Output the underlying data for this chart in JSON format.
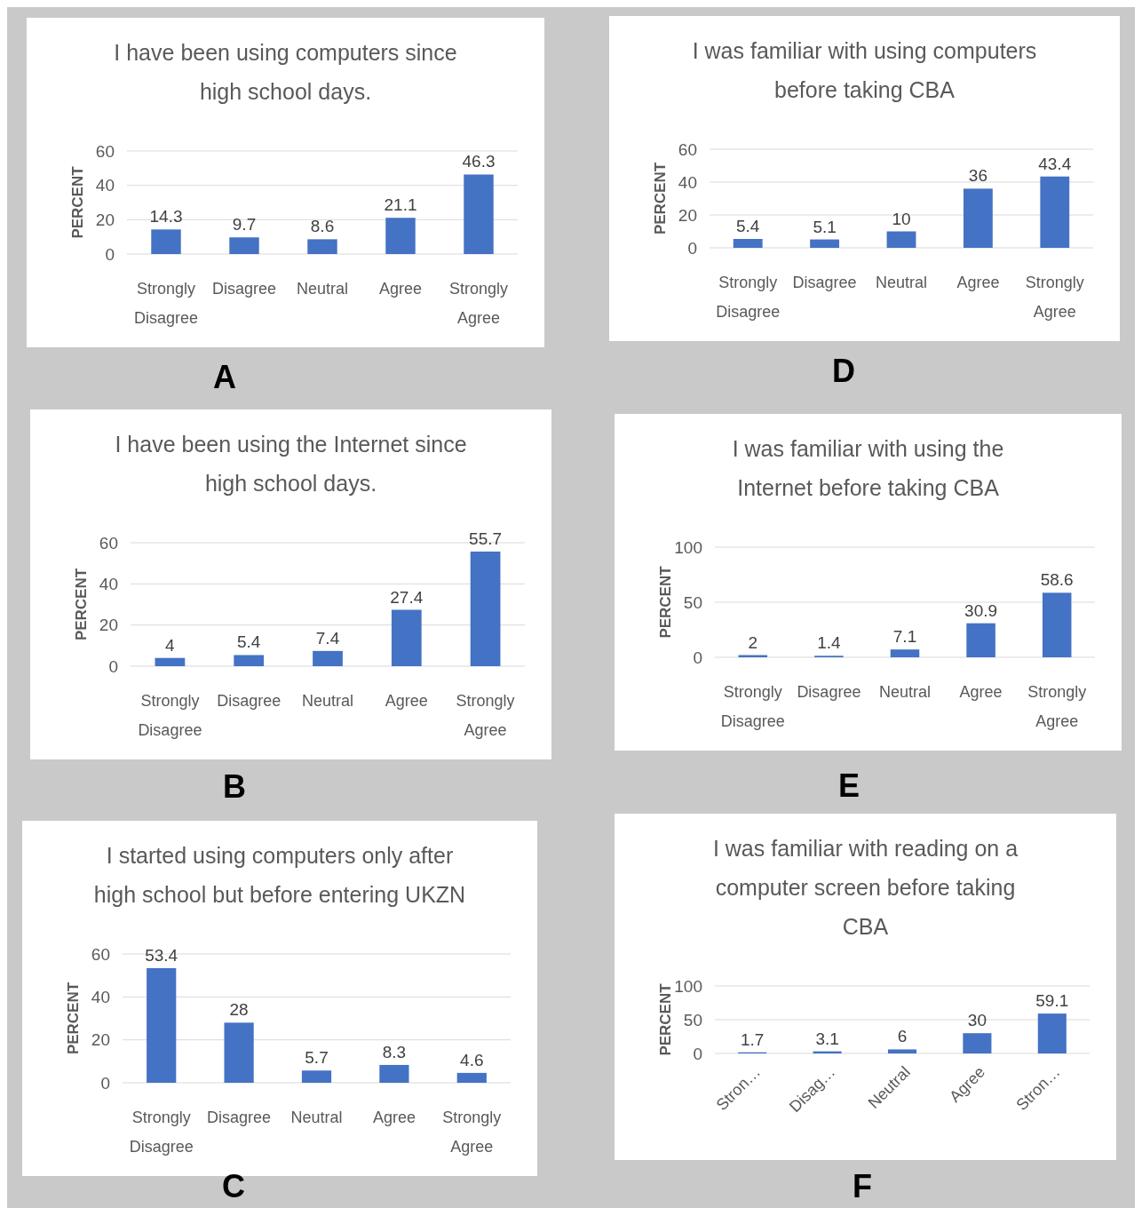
{
  "chart_data": [
    {
      "type": "bar",
      "title": "I have been using computers since high school days.",
      "ylabel": "PERCENT",
      "categories": [
        "Strongly Disagree",
        "Disagree",
        "Neutral",
        "Agree",
        "Strongly Agree"
      ],
      "values": [
        14.3,
        9.7,
        8.6,
        21.1,
        46.3
      ],
      "color": "#4472c4",
      "ylim": [
        0,
        60
      ],
      "yticks": [
        0,
        20,
        40,
        60
      ],
      "grid": "y",
      "data_labels": true,
      "annotations": [
        "A"
      ]
    },
    {
      "type": "bar",
      "title": "I was familiar with using computers before taking CBA",
      "ylabel": "PERCENT",
      "categories": [
        "Strongly Disagree",
        "Disagree",
        "Neutral",
        "Agree",
        "Strongly Agree"
      ],
      "values": [
        5.4,
        5.1,
        10,
        36,
        43.4
      ],
      "color": "#4472c4",
      "ylim": [
        0,
        60
      ],
      "yticks": [
        0,
        20,
        40,
        60
      ],
      "grid": "y",
      "data_labels": true,
      "annotations": [
        "D"
      ]
    },
    {
      "type": "bar",
      "title": "I have been using the Internet since high school days.",
      "ylabel": "PERCENT",
      "categories": [
        "Strongly Disagree",
        "Disagree",
        "Neutral",
        "Agree",
        "Strongly Agree"
      ],
      "values": [
        4,
        5.4,
        7.4,
        27.4,
        55.7
      ],
      "color": "#4472c4",
      "ylim": [
        0,
        60
      ],
      "yticks": [
        0,
        20,
        40,
        60
      ],
      "grid": "y",
      "data_labels": true,
      "annotations": [
        "B"
      ]
    },
    {
      "type": "bar",
      "title": "I was familiar with using the Internet before taking CBA",
      "ylabel": "PERCENT",
      "categories": [
        "Strongly Disagree",
        "Disagree",
        "Neutral",
        "Agree",
        "Strongly Agree"
      ],
      "values": [
        2,
        1.4,
        7.1,
        30.9,
        58.6
      ],
      "color": "#4472c4",
      "ylim": [
        0,
        100
      ],
      "yticks": [
        0,
        50,
        100
      ],
      "grid": "y",
      "data_labels": true,
      "annotations": [
        "E"
      ]
    },
    {
      "type": "bar",
      "title": "I started using computers only after high school but before entering UKZN",
      "ylabel": "PERCENT",
      "categories": [
        "Strongly Disagree",
        "Disagree",
        "Neutral",
        "Agree",
        "Strongly Agree"
      ],
      "values": [
        53.4,
        28,
        5.7,
        8.3,
        4.6
      ],
      "color": "#4472c4",
      "ylim": [
        0,
        60
      ],
      "yticks": [
        0,
        20,
        40,
        60
      ],
      "grid": "y",
      "data_labels": true,
      "annotations": [
        "C"
      ]
    },
    {
      "type": "bar",
      "title": "I was familiar with reading on a computer screen before taking CBA",
      "ylabel": "PERCENT",
      "categories": [
        "Stron…",
        "Disag…",
        "Neutral",
        "Agree",
        "Stron…"
      ],
      "values": [
        1.7,
        3.1,
        6,
        30,
        59.1
      ],
      "color": "#4472c4",
      "ylim": [
        0,
        100
      ],
      "yticks": [
        0,
        50,
        100
      ],
      "grid": "y",
      "data_labels": true,
      "annotations": [
        "F"
      ]
    }
  ]
}
